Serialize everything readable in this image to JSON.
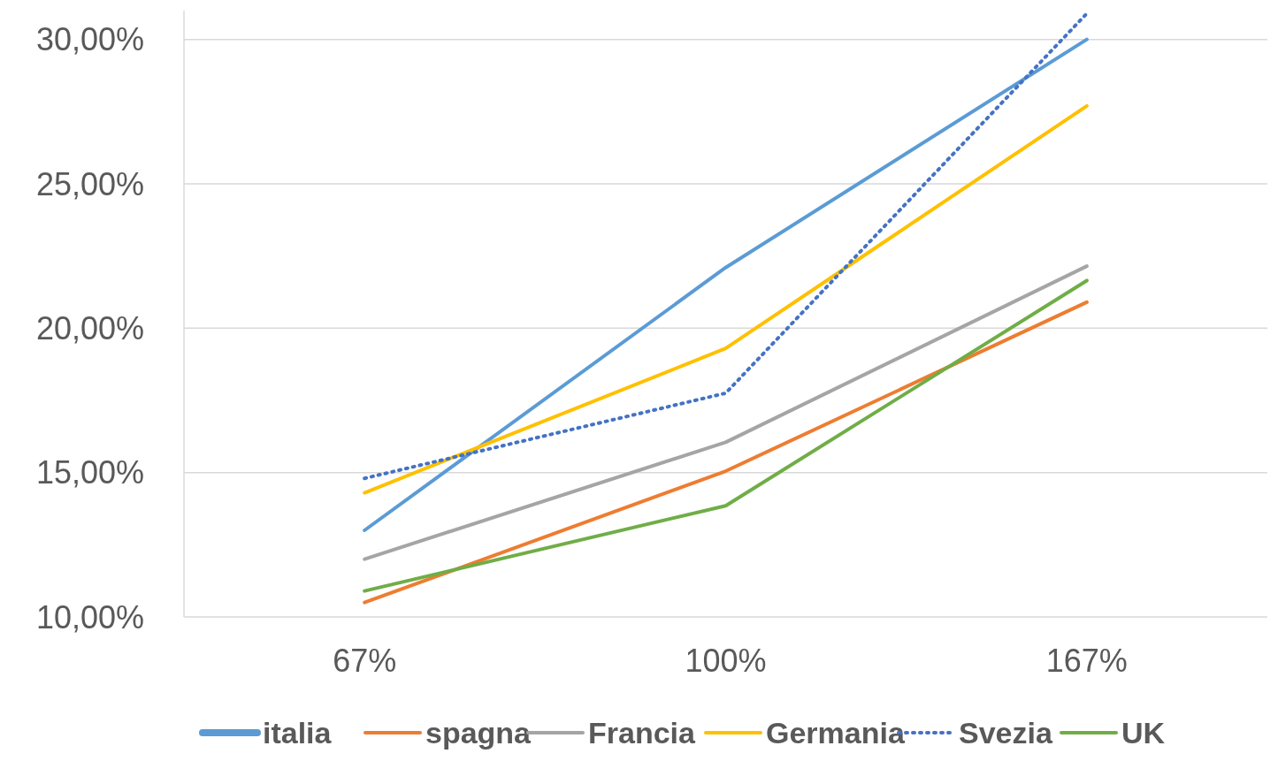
{
  "chart_data": {
    "type": "line",
    "categories": [
      "67%",
      "100%",
      "167%"
    ],
    "series": [
      {
        "name": "italia",
        "color": "#5b9bd5",
        "values": [
          13.0,
          22.1,
          30.0
        ]
      },
      {
        "name": "spagna",
        "color": "#ed7d31",
        "values": [
          10.5,
          15.05,
          20.9
        ]
      },
      {
        "name": "Francia",
        "color": "#a5a5a5",
        "values": [
          12.0,
          16.05,
          22.15
        ]
      },
      {
        "name": "Germania",
        "color": "#ffc000",
        "values": [
          14.3,
          19.3,
          27.7
        ]
      },
      {
        "name": "Svezia",
        "color": "#4472c4",
        "values": [
          14.8,
          17.75,
          30.9
        ],
        "line_style": "dotted"
      },
      {
        "name": "UK",
        "color": "#70ad47",
        "values": [
          10.9,
          13.85,
          21.65
        ]
      }
    ],
    "ylim": [
      10,
      31
    ],
    "yticks": [
      {
        "value": 10,
        "label": "10,00%"
      },
      {
        "value": 15,
        "label": "15,00%"
      },
      {
        "value": 20,
        "label": "20,00%"
      },
      {
        "value": 25,
        "label": "25,00%"
      },
      {
        "value": 30,
        "label": "30,00%"
      }
    ],
    "grid": "y",
    "legend": "bottom",
    "line_style": "solid",
    "marker": "none"
  }
}
